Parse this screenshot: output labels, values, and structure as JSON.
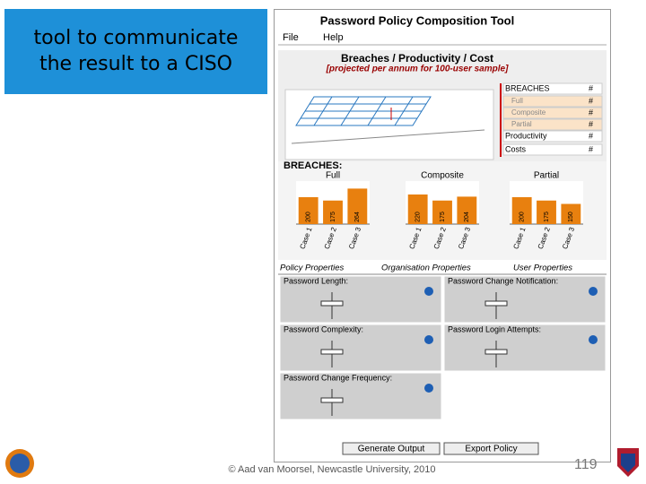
{
  "slide": {
    "callout": [
      "tool to communicate",
      "the result to a CISO"
    ],
    "footer": "© Aad van Moorsel, Newcastle University, 2010",
    "page_number": "119"
  },
  "app": {
    "title": "Password Policy Composition Tool",
    "menu": [
      "File",
      "Help"
    ],
    "summary": {
      "title": "Breaches / Productivity / Cost",
      "subtitle": "[projected per annum for 100-user sample]",
      "legend": [
        {
          "label": "BREACHES",
          "value": "#"
        },
        {
          "label": "Full",
          "value": "#"
        },
        {
          "label": "Composite",
          "value": "#"
        },
        {
          "label": "Partial",
          "value": "#"
        },
        {
          "label": "Productivity",
          "value": "#"
        },
        {
          "label": "Costs",
          "value": "#"
        }
      ]
    },
    "breaches": {
      "title": "BREACHES:",
      "charts": [
        {
          "name": "Full",
          "categories": [
            "Case 1",
            "Case 2",
            "Case 3"
          ],
          "values": [
            200,
            175,
            264
          ]
        },
        {
          "name": "Composite",
          "categories": [
            "Case 1",
            "Case 2",
            "Case 3"
          ],
          "values": [
            220,
            175,
            204
          ]
        },
        {
          "name": "Partial",
          "categories": [
            "Case 1",
            "Case 2",
            "Case 3"
          ],
          "values": [
            200,
            175,
            150
          ]
        }
      ]
    },
    "tabs": [
      "Policy Properties",
      "Organisation Properties",
      "User Properties"
    ],
    "properties": [
      "Password Length:",
      "Password Change Notification:",
      "Password Complexity:",
      "Password Login Attempts:",
      "Password Change Frequency:"
    ],
    "buttons": [
      "Generate Output",
      "Export Policy"
    ]
  }
}
